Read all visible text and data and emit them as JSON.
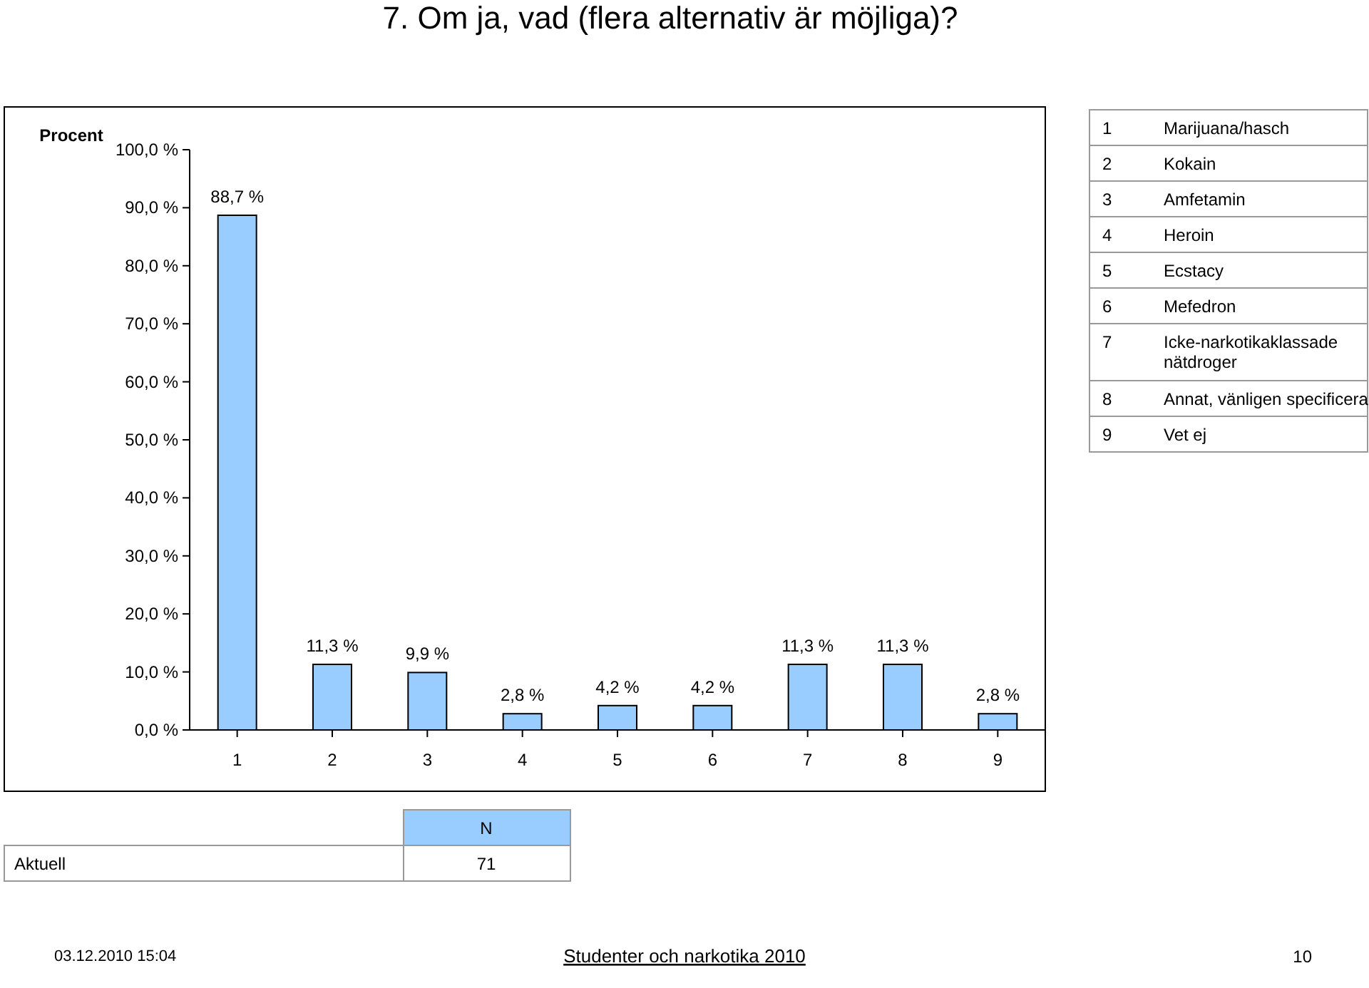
{
  "chart_data": {
    "type": "bar",
    "title": "7. Om ja, vad (flera alternativ är möjliga)?",
    "ylabel": "Procent",
    "categories": [
      "1",
      "2",
      "3",
      "4",
      "5",
      "6",
      "7",
      "8",
      "9"
    ],
    "values": [
      88.7,
      11.3,
      9.9,
      2.8,
      4.2,
      4.2,
      11.3,
      11.3,
      2.8
    ],
    "value_labels": [
      "88,7 %",
      "11,3 %",
      "9,9 %",
      "2,8 %",
      "4,2 %",
      "4,2 %",
      "11,3 %",
      "11,3 %",
      "2,8 %"
    ],
    "color": "#99ccff",
    "ylim": [
      0,
      100
    ],
    "yticks": [
      {
        "value": 0,
        "label": "0,0 %"
      },
      {
        "value": 10,
        "label": "10,0 %"
      },
      {
        "value": 20,
        "label": "20,0 %"
      },
      {
        "value": 30,
        "label": "30,0 %"
      },
      {
        "value": 40,
        "label": "40,0 %"
      },
      {
        "value": 50,
        "label": "50,0 %"
      },
      {
        "value": 60,
        "label": "60,0 %"
      },
      {
        "value": 70,
        "label": "70,0 %"
      },
      {
        "value": 80,
        "label": "80,0 %"
      },
      {
        "value": 90,
        "label": "90,0 %"
      },
      {
        "value": 100,
        "label": "100,0 %"
      }
    ],
    "annotations": [
      "Marijuana/hasch",
      "Kokain",
      "Amfetamin",
      "Heroin",
      "Ecstacy",
      "Mefedron",
      "Icke-narkotikaklassade nätdroger",
      "Annat, vänligen specificera",
      "Vet ej",
      "N",
      "Aktuell",
      "71",
      "03.12.2010 15:04",
      "Studenter och narkotika 2010",
      "10"
    ]
  }
}
